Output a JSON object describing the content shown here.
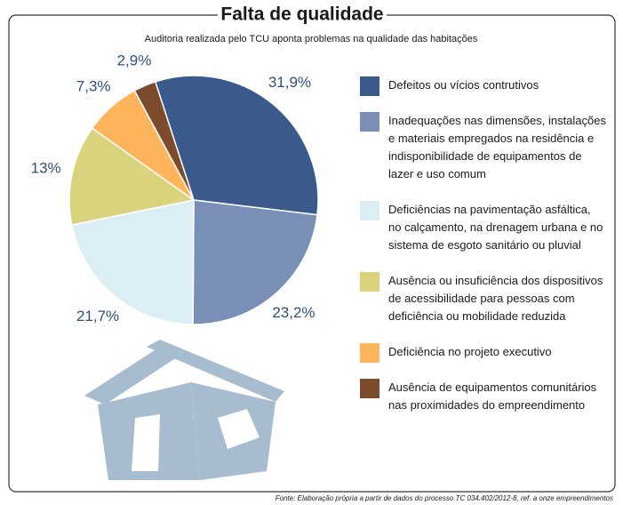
{
  "chart_data": {
    "type": "pie",
    "title": "Falta de qualidade",
    "subtitle": "Auditoria realizada pelo TCU aponta problemas na qualidade das habitações",
    "source": "Fonte: Elaboração própria a partir de dados do processo TC 034.402/2012-8, ref. a onze empreendimentos",
    "categories": [
      "Defeitos ou vícios contrutivos",
      "Inadequações nas dimensões, instalações\ne materiais empregados na residência e\nindisponibilidade de equipamentos de\nlazer e uso comum",
      "Deficiências na pavimentação asfáltica,\nno calçamento, na drenagem urbana e no\nsistema de esgoto sanitário ou pluvial",
      "Ausência ou insuficiência dos dispositivos\nde acessibilidade para pessoas com\ndeficiência ou mobilidade reduzida",
      "Deficiência no projeto executivo",
      "Ausência de equipamentos comunitários\nnas proximidades do empreendimento"
    ],
    "values": [
      31.9,
      23.2,
      21.7,
      13,
      7.3,
      2.9
    ],
    "value_labels": [
      "31,9%",
      "23,2%",
      "21,7%",
      "13%",
      "7,3%",
      "2,9%"
    ],
    "colors": [
      "#3a5a8c",
      "#7a8fb8",
      "#daeef3",
      "#d9d37d",
      "#fdb45a",
      "#7b4b2b"
    ]
  }
}
